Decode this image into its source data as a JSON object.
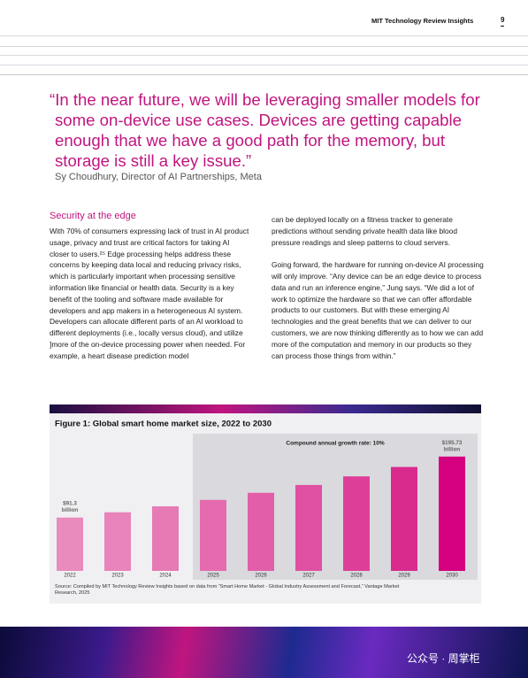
{
  "header": {
    "publication": "MIT Technology Review Insights",
    "page": "9"
  },
  "quote": {
    "text": "“In the near future, we will be leveraging smaller models for some on-device use cases. Devices are getting capable enough that we have a good path for the memory, but storage is still a key issue.”",
    "attribution": "Sy Choudhury, Director of AI Partnerships, Meta"
  },
  "section": {
    "heading": "Security at the edge",
    "paragraphs": [
      "With 70% of consumers expressing lack of trust in AI product usage, privacy and trust are critical factors for taking AI closer to users.²⁵ Edge processing helps address these concerns by keeping data local and reducing privacy risks, which is particularly important when processing sensitive information like financial or health data. Security is a key benefit of the tooling and software made available for developers and app makers in a heterogeneous AI system. Developers can allocate different parts of an AI workload to different deployments (i.e., locally versus cloud), and utilize ]more of the on-device processing power when needed. For example, a heart disease prediction model",
      "can be deployed locally on a fitness tracker to generate predictions without sending private health data like blood pressure readings and sleep patterns to cloud servers.",
      "Going forward, the hardware for running on-device AI processing will only improve. “Any device can be an edge device to process data and run an inference engine,” Jung says. “We did a lot of work to optimize the hardware so that we can offer affordable products to our customers. But with these emerging AI technologies and the great benefits that we can deliver to our customers, we are now thinking differently as to how we can add more of the computation and memory in our products so they can process those things from within.”"
    ]
  },
  "chart_data": {
    "type": "bar",
    "title": "Figure 1: Global smart home market size, 2022 to 2030",
    "subtitle": "Compound annual growth rate: 10%",
    "categories": [
      "2022",
      "2023",
      "2024",
      "2025",
      "2026",
      "2027",
      "2028",
      "2029",
      "2030"
    ],
    "values": [
      91.3,
      100.4,
      110.5,
      121.5,
      133.7,
      147.1,
      161.8,
      177.9,
      195.73
    ],
    "value_labels": [
      "$91.3 billion",
      null,
      null,
      null,
      null,
      null,
      null,
      null,
      "$195.73 billion"
    ],
    "colors": [
      "#e98bbd",
      "#e884bb",
      "#e57ab5",
      "#e66aae",
      "#e35ea8",
      "#e050a2",
      "#dd3f98",
      "#d92b8e",
      "#d40080"
    ],
    "shaded_from": "2025",
    "source": "Source: Compiled by MIT Technology Review Insights based on data from “Smart Home Market - Global Industry Assessment and Forecast,” Vantage Market Research, 2025"
  },
  "watermark": "公众号 · 周掌柜"
}
